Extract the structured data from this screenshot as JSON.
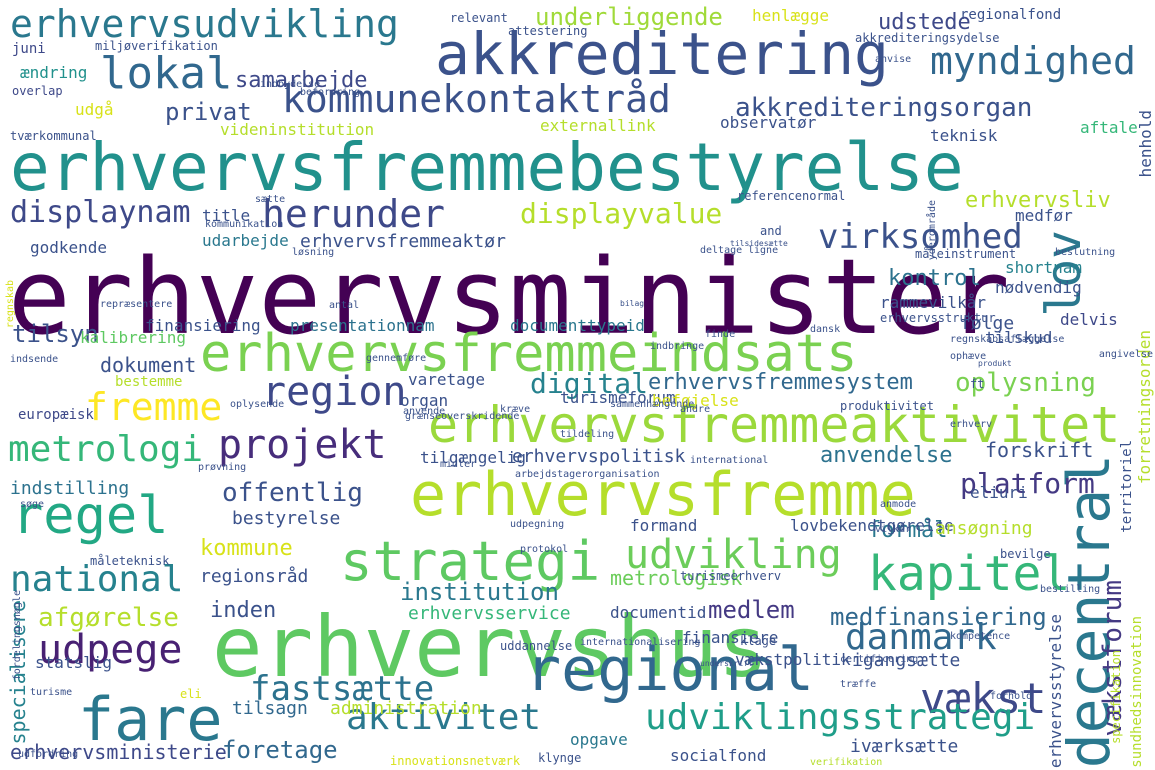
{
  "words": [
    {
      "text": "erhvervsminister",
      "color": "#440154"
    },
    {
      "text": "erhvervsfremmebestyrelse",
      "color": "#21918c"
    },
    {
      "text": "erhvervshus",
      "color": "#5ec962"
    },
    {
      "text": "erhvervsfremme",
      "color": "#b5de2b"
    },
    {
      "text": "akkreditering",
      "color": "#3b528b"
    },
    {
      "text": "erhvervsfremmeindsats",
      "color": "#7ad151"
    },
    {
      "text": "erhvervsfremmeaktivitet",
      "color": "#9bd93c"
    },
    {
      "text": "regional",
      "color": "#31688e"
    },
    {
      "text": "strategi",
      "color": "#5ec962"
    },
    {
      "text": "fare",
      "color": "#2a788e"
    },
    {
      "text": "regel",
      "color": "#22a884"
    },
    {
      "text": "kapitel",
      "color": "#35b779"
    },
    {
      "text": "erhvervsudvikling",
      "color": "#2a788e"
    },
    {
      "text": "kommunekontaktråd",
      "color": "#3b528b"
    },
    {
      "text": "herunder",
      "color": "#3e4989"
    },
    {
      "text": "lokal",
      "color": "#31688e"
    },
    {
      "text": "myndighed",
      "color": "#31688e"
    },
    {
      "text": "udvikling",
      "color": "#6ccd5a"
    },
    {
      "text": "projekt",
      "color": "#472d7b"
    },
    {
      "text": "udpege",
      "color": "#482173"
    },
    {
      "text": "region",
      "color": "#3e4989"
    },
    {
      "text": "lov",
      "color": "#2a788e"
    },
    {
      "text": "decentral",
      "color": "#2a788e"
    },
    {
      "text": "national",
      "color": "#26828e"
    },
    {
      "text": "vækst",
      "color": "#3e4989"
    },
    {
      "text": "fastsætte",
      "color": "#2c728e"
    },
    {
      "text": "danmark",
      "color": "#31688e"
    },
    {
      "text": "udviklingsstrategi",
      "color": "#1f9e89"
    },
    {
      "text": "aktivitet",
      "color": "#2a788e"
    },
    {
      "text": "virksomhed",
      "color": "#3b528b"
    },
    {
      "text": "metrologi",
      "color": "#35b779"
    },
    {
      "text": "fremme",
      "color": "#fde725"
    },
    {
      "text": "displaynam",
      "color": "#3e4989"
    },
    {
      "text": "displayvalue",
      "color": "#b5de2b"
    },
    {
      "text": "digital",
      "color": "#26828e"
    },
    {
      "text": "akkrediteringsorgan",
      "color": "#3b528b"
    },
    {
      "text": "offentlig",
      "color": "#3b528b"
    },
    {
      "text": "platform",
      "color": "#443983"
    },
    {
      "text": "oplysning",
      "color": "#7ad151"
    },
    {
      "text": "vækstforum",
      "color": "#443983"
    },
    {
      "text": "erhvervsfremmesystem",
      "color": "#31688e"
    },
    {
      "text": "institution",
      "color": "#2a788e"
    },
    {
      "text": "medlem",
      "color": "#443983"
    },
    {
      "text": "medfinansiering",
      "color": "#31688e"
    },
    {
      "text": "afgørelse",
      "color": "#b5de2b"
    },
    {
      "text": "inden",
      "color": "#3b528b"
    },
    {
      "text": "foretage",
      "color": "#31688e"
    },
    {
      "text": "anvendelse",
      "color": "#2c728e"
    },
    {
      "text": "underliggende",
      "color": "#a0da39"
    },
    {
      "text": "samarbejde",
      "color": "#3e4989"
    },
    {
      "text": "udstede",
      "color": "#3e4989"
    },
    {
      "text": "privat",
      "color": "#3b528b"
    },
    {
      "text": "erhvervsliv",
      "color": "#b5de2b"
    },
    {
      "text": "kontrol",
      "color": "#2c728e"
    },
    {
      "text": "tilsyn",
      "color": "#3b528b"
    },
    {
      "text": "formål",
      "color": "#2a788e"
    },
    {
      "text": "kommune",
      "color": "#d8e219"
    },
    {
      "text": "metrologisk",
      "color": "#6ccd5a"
    },
    {
      "text": "erhvervsministerie",
      "color": "#3e4989"
    },
    {
      "text": "administration",
      "color": "#b5de2b"
    },
    {
      "text": "dokument",
      "color": "#3b528b"
    },
    {
      "text": "erhvervspolitisk",
      "color": "#3b528b"
    },
    {
      "text": "indstilling",
      "color": "#2c728e"
    },
    {
      "text": "bestyrelse",
      "color": "#3b528b"
    },
    {
      "text": "regionsråd",
      "color": "#3b528b"
    },
    {
      "text": "specialisere",
      "color": "#26828e"
    },
    {
      "text": "erhvervsservice",
      "color": "#35b779"
    },
    {
      "text": "documentid",
      "color": "#3b528b"
    },
    {
      "text": "finansiere",
      "color": "#3b528b"
    },
    {
      "text": "vækstpolitik",
      "color": "#3b528b"
    },
    {
      "text": "tilsagn",
      "color": "#31688e"
    },
    {
      "text": "igangsætte",
      "color": "#3b528b"
    },
    {
      "text": "iværksætte",
      "color": "#3b528b"
    },
    {
      "text": "socialfond",
      "color": "#3b528b"
    },
    {
      "text": "opgave",
      "color": "#2a788e"
    },
    {
      "text": "formand",
      "color": "#3b528b"
    },
    {
      "text": "lovbekendtgørelse",
      "color": "#3b528b"
    },
    {
      "text": "ansøgning",
      "color": "#b5de2b"
    },
    {
      "text": "eliuri",
      "color": "#3b528b"
    },
    {
      "text": "forskrift",
      "color": "#3b528b"
    },
    {
      "text": "tilgængelig",
      "color": "#3b528b"
    },
    {
      "text": "følge",
      "color": "#3b528b"
    },
    {
      "text": "delvis",
      "color": "#3e4989"
    },
    {
      "text": "tilskud",
      "color": "#3b528b"
    },
    {
      "text": "rammevilkår",
      "color": "#3b528b"
    },
    {
      "text": "shortnam",
      "color": "#26828e"
    },
    {
      "text": "nødvendig",
      "color": "#3b528b"
    },
    {
      "text": "erhvervsfremmeaktør",
      "color": "#3b528b"
    },
    {
      "text": "udarbejde",
      "color": "#2a788e"
    },
    {
      "text": "title",
      "color": "#3b528b"
    },
    {
      "text": "godkende",
      "color": "#3b528b"
    },
    {
      "text": "finansiering",
      "color": "#3b528b"
    },
    {
      "text": "presentationnam",
      "color": "#2c728e"
    },
    {
      "text": "documenttypeid",
      "color": "#2a788e"
    },
    {
      "text": "erhvervsstruktur",
      "color": "#3b528b"
    },
    {
      "text": "varetage",
      "color": "#3b528b"
    },
    {
      "text": "organ",
      "color": "#3b528b"
    },
    {
      "text": "turismeforum",
      "color": "#3b528b"
    },
    {
      "text": "beføjelse",
      "color": "#d8e219"
    },
    {
      "text": "europæisk",
      "color": "#3e4989"
    },
    {
      "text": "bestemme",
      "color": "#b5de2b"
    },
    {
      "text": "kalibrering",
      "color": "#5ec962"
    },
    {
      "text": "teknisk",
      "color": "#3b528b"
    },
    {
      "text": "aftale",
      "color": "#35b779"
    },
    {
      "text": "observatør",
      "color": "#3b528b"
    },
    {
      "text": "externallink",
      "color": "#b5de2b"
    },
    {
      "text": "videninstitution",
      "color": "#b5de2b"
    },
    {
      "text": "referencenormal",
      "color": "#3b528b"
    },
    {
      "text": "udgå",
      "color": "#d8e219"
    },
    {
      "text": "ændring",
      "color": "#21918c"
    },
    {
      "text": "juni",
      "color": "#3e4989"
    },
    {
      "text": "miljøverifikation",
      "color": "#3b528b"
    },
    {
      "text": "tværkommunal",
      "color": "#3b528b"
    },
    {
      "text": "henlægge",
      "color": "#d8e219"
    },
    {
      "text": "attestering",
      "color": "#3b528b"
    },
    {
      "text": "relevant",
      "color": "#3b528b"
    },
    {
      "text": "regionalfond",
      "color": "#3b528b"
    },
    {
      "text": "akkrediteringsydelse",
      "color": "#3b528b"
    },
    {
      "text": "henhold",
      "color": "#3b528b"
    },
    {
      "text": "medfør",
      "color": "#3b528b"
    },
    {
      "text": "måleinstrument",
      "color": "#3b528b"
    },
    {
      "text": "overlap",
      "color": "#3e4989"
    },
    {
      "text": "and",
      "color": "#3b528b"
    },
    {
      "text": "ft",
      "color": "#3b528b"
    },
    {
      "text": "eli",
      "color": "#d8e219"
    },
    {
      "text": "måleteknisk",
      "color": "#3b528b"
    },
    {
      "text": "statslig",
      "color": "#3b528b"
    },
    {
      "text": "uddannelse",
      "color": "#3b528b"
    },
    {
      "text": "klage",
      "color": "#3b528b"
    },
    {
      "text": "bevilge",
      "color": "#3b528b"
    },
    {
      "text": "turismeerhverv",
      "color": "#3b528b"
    },
    {
      "text": "territoriel",
      "color": "#3b528b"
    },
    {
      "text": "forretningsorden",
      "color": "#b5de2b"
    },
    {
      "text": "erhvervsstyrelse",
      "color": "#3b528b"
    },
    {
      "text": "sundhedsinnovation",
      "color": "#b5de2b"
    },
    {
      "text": "specifikation",
      "color": "#b5de2b"
    },
    {
      "text": "produktivitet",
      "color": "#3b528b"
    },
    {
      "text": "innovationsnetværk",
      "color": "#d8e219"
    },
    {
      "text": "klynge",
      "color": "#3b528b"
    },
    {
      "text": "international",
      "color": "#3b528b"
    },
    {
      "text": "prøvning",
      "color": "#3b528b"
    },
    {
      "text": "grænseoverskridende",
      "color": "#3b528b"
    },
    {
      "text": "arbejdstagerorganisation",
      "color": "#3b528b"
    },
    {
      "text": "sammenhængende",
      "color": "#3b528b"
    },
    {
      "text": "indbringe",
      "color": "#3b528b"
    },
    {
      "text": "finde",
      "color": "#3b528b"
    },
    {
      "text": "ophæve",
      "color": "#3b528b"
    },
    {
      "text": "indsende",
      "color": "#3b528b"
    },
    {
      "text": "regnskab",
      "color": "#d8e219"
    },
    {
      "text": "kræve",
      "color": "#3b528b"
    },
    {
      "text": "andre",
      "color": "#3b528b"
    },
    {
      "text": "vilkår",
      "color": "#3b528b"
    },
    {
      "text": "turisme",
      "color": "#3b528b"
    },
    {
      "text": "udpegning",
      "color": "#3b528b"
    },
    {
      "text": "protokol",
      "color": "#3b528b"
    },
    {
      "text": "certificering",
      "color": "#3b528b"
    },
    {
      "text": "tilsidesætte",
      "color": "#3b528b"
    },
    {
      "text": "dansk",
      "color": "#3b528b"
    },
    {
      "text": "ligne",
      "color": "#3b528b"
    },
    {
      "text": "deltage",
      "color": "#3b528b"
    },
    {
      "text": "beslutning",
      "color": "#3b528b"
    },
    {
      "text": "regnskabsaflæggelse",
      "color": "#3b528b"
    },
    {
      "text": "indbydelse",
      "color": "#3b528b"
    },
    {
      "text": "yderområde",
      "color": "#3b528b"
    },
    {
      "text": "anvise",
      "color": "#3b528b"
    },
    {
      "text": "befordring",
      "color": "#3b528b"
    },
    {
      "text": "angivelse",
      "color": "#3b528b"
    },
    {
      "text": "forhold",
      "color": "#3b528b"
    },
    {
      "text": "bestilling",
      "color": "#3b528b"
    },
    {
      "text": "produkt",
      "color": "#3b528b"
    },
    {
      "text": "verifikation",
      "color": "#b5de2b"
    },
    {
      "text": "fordelingsnøgle",
      "color": "#3b528b"
    },
    {
      "text": "oplysende",
      "color": "#3b528b"
    },
    {
      "text": "kommunikation",
      "color": "#3b528b"
    },
    {
      "text": "internationalisering",
      "color": "#3b528b"
    },
    {
      "text": "kompetence",
      "color": "#3b528b"
    },
    {
      "text": "udfordring",
      "color": "#3b528b"
    },
    {
      "text": "repræsentere",
      "color": "#3b528b"
    },
    {
      "text": "søge",
      "color": "#3b528b"
    },
    {
      "text": "tildeling",
      "color": "#3b528b"
    },
    {
      "text": "underskrift",
      "color": "#3b528b"
    },
    {
      "text": "træffe",
      "color": "#3b528b"
    },
    {
      "text": "anmode",
      "color": "#3b528b"
    },
    {
      "text": "erhverv",
      "color": "#3b528b"
    },
    {
      "text": "bilag",
      "color": "#3b528b"
    },
    {
      "text": "sætte",
      "color": "#3b528b"
    },
    {
      "text": "løsning",
      "color": "#3b528b"
    },
    {
      "text": "antal",
      "color": "#3b528b"
    },
    {
      "text": "gennemføre",
      "color": "#3b528b"
    },
    {
      "text": "anvende",
      "color": "#3b528b"
    },
    {
      "text": "midler",
      "color": "#3b528b"
    }
  ]
}
